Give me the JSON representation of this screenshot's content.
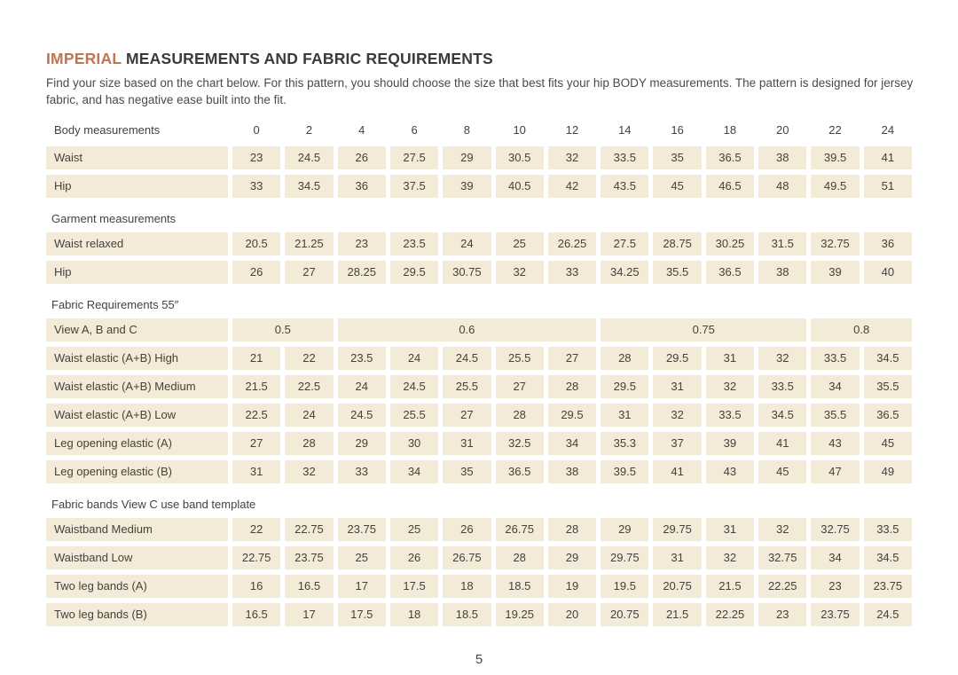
{
  "page": {
    "title_highlight": "IMPERIAL",
    "title_rest": " MEASUREMENTS AND FABRIC REQUIREMENTS",
    "subtitle": "Find your size based on the chart below. For this pattern, you should choose the size that best fits your hip BODY measurements.  The pattern is designed for jersey fabric, and has negative ease built into the fit.",
    "page_number": "5"
  },
  "colors": {
    "accent": "#c0744f",
    "cell_background": "#f3ead8",
    "text": "#45423c"
  },
  "table": {
    "header_label": "Body measurements",
    "sizes": [
      "0",
      "2",
      "4",
      "6",
      "8",
      "10",
      "12",
      "14",
      "16",
      "18",
      "20",
      "22",
      "24"
    ],
    "rows": [
      {
        "type": "header",
        "label": "Body measurements"
      },
      {
        "type": "data",
        "label": "Waist",
        "values": [
          "23",
          "24.5",
          "26",
          "27.5",
          "29",
          "30.5",
          "32",
          "33.5",
          "35",
          "36.5",
          "38",
          "39.5",
          "41"
        ]
      },
      {
        "type": "data",
        "label": "Hip",
        "values": [
          "33",
          "34.5",
          "36",
          "37.5",
          "39",
          "40.5",
          "42",
          "43.5",
          "45",
          "46.5",
          "48",
          "49.5",
          "51"
        ]
      },
      {
        "type": "section",
        "label": "Garment measurements"
      },
      {
        "type": "data",
        "label": "Waist relaxed",
        "values": [
          "20.5",
          "21.25",
          "23",
          "23.5",
          "24",
          "25",
          "26.25",
          "27.5",
          "28.75",
          "30.25",
          "31.5",
          "32.75",
          "36"
        ]
      },
      {
        "type": "data",
        "label": "Hip",
        "values": [
          "26",
          "27",
          "28.25",
          "29.5",
          "30.75",
          "32",
          "33",
          "34.25",
          "35.5",
          "36.5",
          "38",
          "39",
          "40"
        ]
      },
      {
        "type": "section",
        "label": "Fabric Requirements 55″"
      },
      {
        "type": "span",
        "label": "View A, B and C",
        "groups": [
          {
            "value": "0.5",
            "span": 2
          },
          {
            "value": "0.6",
            "span": 5
          },
          {
            "value": "0.75",
            "span": 4
          },
          {
            "value": "0.8",
            "span": 2
          }
        ]
      },
      {
        "type": "data",
        "label": "Waist elastic (A+B) High",
        "values": [
          "21",
          "22",
          "23.5",
          "24",
          "24.5",
          "25.5",
          "27",
          "28",
          "29.5",
          "31",
          "32",
          "33.5",
          "34.5"
        ]
      },
      {
        "type": "data",
        "label": "Waist elastic (A+B) Medium",
        "values": [
          "21.5",
          "22.5",
          "24",
          "24.5",
          "25.5",
          "27",
          "28",
          "29.5",
          "31",
          "32",
          "33.5",
          "34",
          "35.5"
        ]
      },
      {
        "type": "data",
        "label": "Waist elastic (A+B) Low",
        "values": [
          "22.5",
          "24",
          "24.5",
          "25.5",
          "27",
          "28",
          "29.5",
          "31",
          "32",
          "33.5",
          "34.5",
          "35.5",
          "36.5"
        ]
      },
      {
        "type": "data",
        "label": "Leg opening elastic (A)",
        "values": [
          "27",
          "28",
          "29",
          "30",
          "31",
          "32.5",
          "34",
          "35.3",
          "37",
          "39",
          "41",
          "43",
          "45"
        ]
      },
      {
        "type": "data",
        "label": "Leg opening elastic (B)",
        "values": [
          "31",
          "32",
          "33",
          "34",
          "35",
          "36.5",
          "38",
          "39.5",
          "41",
          "43",
          "45",
          "47",
          "49"
        ]
      },
      {
        "type": "section",
        "label": "Fabric bands View C use band template"
      },
      {
        "type": "data",
        "label": "Waistband Medium",
        "values": [
          "22",
          "22.75",
          "23.75",
          "25",
          "26",
          "26.75",
          "28",
          "29",
          "29.75",
          "31",
          "32",
          "32.75",
          "33.5"
        ]
      },
      {
        "type": "data",
        "label": "Waistband Low",
        "values": [
          "22.75",
          "23.75",
          "25",
          "26",
          "26.75",
          "28",
          "29",
          "29.75",
          "31",
          "32",
          "32.75",
          "34",
          "34.5"
        ]
      },
      {
        "type": "data",
        "label": "Two leg bands (A)",
        "values": [
          "16",
          "16.5",
          "17",
          "17.5",
          "18",
          "18.5",
          "19",
          "19.5",
          "20.75",
          "21.5",
          "22.25",
          "23",
          "23.75"
        ]
      },
      {
        "type": "data",
        "label": "Two leg bands (B)",
        "values": [
          "16.5",
          "17",
          "17.5",
          "18",
          "18.5",
          "19.25",
          "20",
          "20.75",
          "21.5",
          "22.25",
          "23",
          "23.75",
          "24.5"
        ]
      }
    ]
  }
}
